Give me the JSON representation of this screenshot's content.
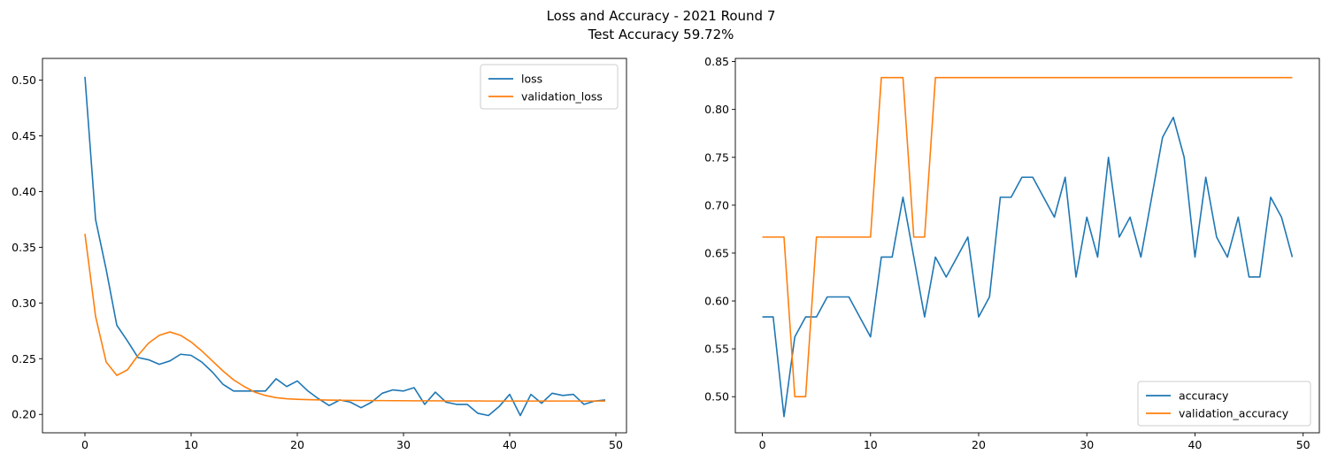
{
  "figure": {
    "title_line1": "Loss and Accuracy - 2021 Round 7",
    "title_line2": "Test Accuracy 59.72%"
  },
  "chart_data": [
    {
      "type": "line",
      "title": "",
      "xlabel": "",
      "ylabel": "",
      "xlim": [
        -4,
        51
      ],
      "ylim": [
        0.1835,
        0.5195
      ],
      "xticks": [
        0,
        10,
        20,
        30,
        40,
        50
      ],
      "yticks": [
        0.2,
        0.25,
        0.3,
        0.35,
        0.4,
        0.45,
        0.5
      ],
      "ytick_decimals": 2,
      "legend": "top-right",
      "grid": false,
      "series": [
        {
          "name": "loss",
          "color": "#1f77b4",
          "x": [
            0,
            1,
            2,
            3,
            4,
            5,
            6,
            7,
            8,
            9,
            10,
            11,
            12,
            13,
            14,
            15,
            16,
            17,
            18,
            19,
            20,
            21,
            22,
            23,
            24,
            25,
            26,
            27,
            28,
            29,
            30,
            31,
            32,
            33,
            34,
            35,
            36,
            37,
            38,
            39,
            40,
            41,
            42,
            43,
            44,
            45,
            46,
            47,
            48,
            49
          ],
          "y": [
            0.503,
            0.375,
            0.33,
            0.28,
            0.266,
            0.251,
            0.249,
            0.245,
            0.248,
            0.254,
            0.253,
            0.247,
            0.238,
            0.227,
            0.221,
            0.221,
            0.221,
            0.221,
            0.232,
            0.225,
            0.23,
            0.221,
            0.214,
            0.208,
            0.213,
            0.211,
            0.206,
            0.211,
            0.219,
            0.222,
            0.221,
            0.224,
            0.209,
            0.22,
            0.211,
            0.209,
            0.209,
            0.201,
            0.199,
            0.207,
            0.218,
            0.199,
            0.218,
            0.21,
            0.219,
            0.217,
            0.218,
            0.209,
            0.212,
            0.213
          ]
        },
        {
          "name": "validation_loss",
          "color": "#ff7f0e",
          "x": [
            0,
            1,
            2,
            3,
            4,
            5,
            6,
            7,
            8,
            9,
            10,
            11,
            12,
            13,
            14,
            15,
            16,
            17,
            18,
            19,
            20,
            21,
            22,
            23,
            24,
            25,
            26,
            27,
            28,
            29,
            30,
            31,
            32,
            33,
            34,
            35,
            36,
            37,
            38,
            39,
            40,
            41,
            42,
            43,
            44,
            45,
            46,
            47,
            48,
            49
          ],
          "y": [
            0.362,
            0.288,
            0.247,
            0.235,
            0.24,
            0.253,
            0.264,
            0.271,
            0.274,
            0.271,
            0.265,
            0.257,
            0.248,
            0.239,
            0.231,
            0.225,
            0.22,
            0.217,
            0.215,
            0.214,
            0.2135,
            0.2132,
            0.213,
            0.2128,
            0.2127,
            0.2126,
            0.2125,
            0.2124,
            0.2124,
            0.2123,
            0.2123,
            0.2122,
            0.2122,
            0.2122,
            0.2121,
            0.2121,
            0.2121,
            0.2121,
            0.212,
            0.212,
            0.212,
            0.212,
            0.212,
            0.212,
            0.212,
            0.212,
            0.212,
            0.212,
            0.212,
            0.212
          ]
        }
      ]
    },
    {
      "type": "line",
      "title": "",
      "xlabel": "",
      "ylabel": "",
      "xlim": [
        -2.5,
        51.5
      ],
      "ylim": [
        0.4623,
        0.8533
      ],
      "xticks": [
        0,
        10,
        20,
        30,
        40,
        50
      ],
      "yticks": [
        0.5,
        0.55,
        0.6,
        0.65,
        0.7,
        0.75,
        0.8,
        0.85
      ],
      "ytick_decimals": 2,
      "legend": "bottom-right",
      "grid": false,
      "series": [
        {
          "name": "accuracy",
          "color": "#1f77b4",
          "x": [
            0,
            1,
            2,
            3,
            4,
            5,
            6,
            7,
            8,
            9,
            10,
            11,
            12,
            13,
            14,
            15,
            16,
            17,
            18,
            19,
            20,
            21,
            22,
            23,
            24,
            25,
            26,
            27,
            28,
            29,
            30,
            31,
            32,
            33,
            34,
            35,
            36,
            37,
            38,
            39,
            40,
            41,
            42,
            43,
            44,
            45,
            46,
            47,
            48,
            49
          ],
          "y": [
            0.5833,
            0.5833,
            0.4792,
            0.5625,
            0.5833,
            0.5833,
            0.6042,
            0.6042,
            0.6042,
            0.5833,
            0.5625,
            0.6458,
            0.6458,
            0.7083,
            0.6458,
            0.5833,
            0.6458,
            0.625,
            0.6458,
            0.6667,
            0.5833,
            0.6042,
            0.7083,
            0.7083,
            0.7292,
            0.7292,
            0.7083,
            0.6875,
            0.7292,
            0.625,
            0.6875,
            0.6458,
            0.75,
            0.6667,
            0.6875,
            0.6458,
            0.7083,
            0.7708,
            0.7917,
            0.75,
            0.6458,
            0.7292,
            0.6667,
            0.6458,
            0.6875,
            0.625,
            0.625,
            0.7083,
            0.6875,
            0.6458
          ]
        },
        {
          "name": "validation_accuracy",
          "color": "#ff7f0e",
          "x": [
            0,
            1,
            2,
            3,
            4,
            5,
            6,
            7,
            8,
            9,
            10,
            11,
            12,
            13,
            14,
            15,
            16,
            17,
            18,
            19,
            20,
            21,
            22,
            23,
            24,
            25,
            26,
            27,
            28,
            29,
            30,
            31,
            32,
            33,
            34,
            35,
            36,
            37,
            38,
            39,
            40,
            41,
            42,
            43,
            44,
            45,
            46,
            47,
            48,
            49
          ],
          "y": [
            0.6667,
            0.6667,
            0.6667,
            0.5,
            0.5,
            0.6667,
            0.6667,
            0.6667,
            0.6667,
            0.6667,
            0.6667,
            0.8333,
            0.8333,
            0.8333,
            0.6667,
            0.6667,
            0.8333,
            0.8333,
            0.8333,
            0.8333,
            0.8333,
            0.8333,
            0.8333,
            0.8333,
            0.8333,
            0.8333,
            0.8333,
            0.8333,
            0.8333,
            0.8333,
            0.8333,
            0.8333,
            0.8333,
            0.8333,
            0.8333,
            0.8333,
            0.8333,
            0.8333,
            0.8333,
            0.8333,
            0.8333,
            0.8333,
            0.8333,
            0.8333,
            0.8333,
            0.8333,
            0.8333,
            0.8333,
            0.8333,
            0.8333
          ]
        }
      ]
    }
  ]
}
